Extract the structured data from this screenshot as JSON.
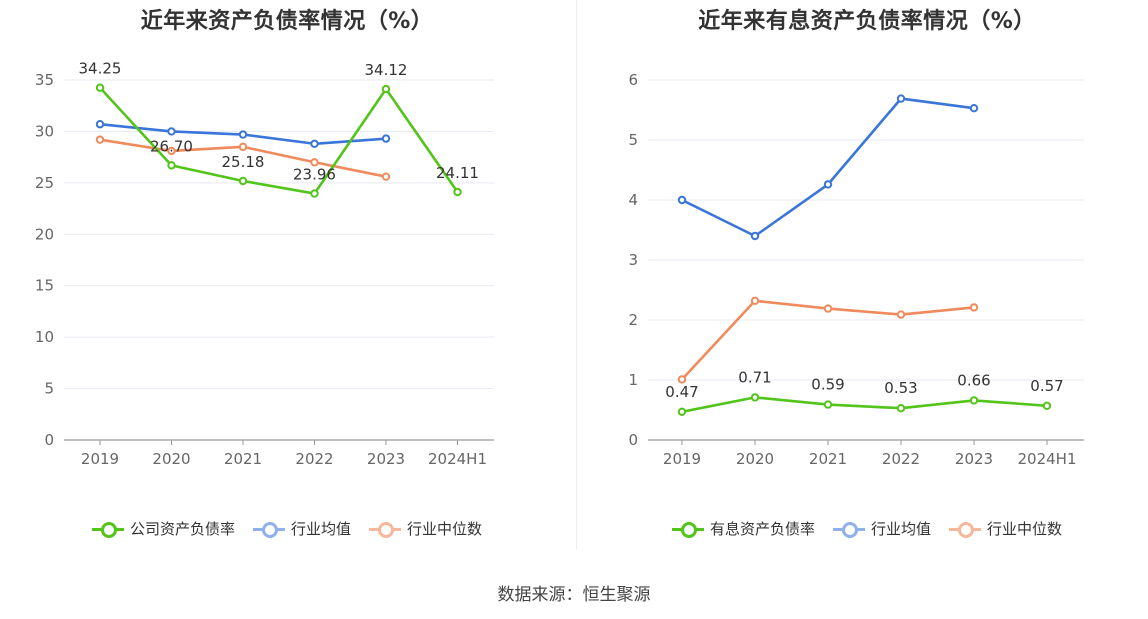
{
  "source": "数据来源：恒生聚源",
  "chart_data": [
    {
      "type": "line",
      "title": "近年来资产负债率情况（%）",
      "categories": [
        "2019",
        "2020",
        "2021",
        "2022",
        "2023",
        "2024H1"
      ],
      "ylim": [
        0,
        35
      ],
      "yticks": [
        0,
        5,
        10,
        15,
        20,
        25,
        30,
        35
      ],
      "grid": true,
      "legend_position": "bottom",
      "series": [
        {
          "name": "公司资产负债率",
          "color": "#52c41a",
          "values": [
            34.25,
            26.7,
            25.18,
            23.96,
            34.12,
            24.11
          ],
          "labels": [
            "34.25",
            "26.70",
            "25.18",
            "23.96",
            "34.12",
            "24.11"
          ]
        },
        {
          "name": "行业均值",
          "color": "#3a75d9",
          "values": [
            30.7,
            30.0,
            29.7,
            28.8,
            29.3,
            null
          ]
        },
        {
          "name": "行业中位数",
          "color": "#f08a5d",
          "values": [
            29.2,
            28.1,
            28.5,
            27.0,
            25.6,
            null
          ]
        }
      ]
    },
    {
      "type": "line",
      "title": "近年来有息资产负债率情况（%）",
      "categories": [
        "2019",
        "2020",
        "2021",
        "2022",
        "2023",
        "2024H1"
      ],
      "ylim": [
        0,
        6
      ],
      "yticks": [
        0,
        1,
        2,
        3,
        4,
        5,
        6
      ],
      "grid": true,
      "legend_position": "bottom",
      "series": [
        {
          "name": "有息资产负债率",
          "color": "#52c41a",
          "values": [
            0.47,
            0.71,
            0.59,
            0.53,
            0.66,
            0.57
          ],
          "labels": [
            "0.47",
            "0.71",
            "0.59",
            "0.53",
            "0.66",
            "0.57"
          ]
        },
        {
          "name": "行业均值",
          "color": "#3a75d9",
          "values": [
            4.0,
            3.4,
            4.26,
            5.69,
            5.53,
            null
          ]
        },
        {
          "name": "行业中位数",
          "color": "#f08a5d",
          "values": [
            1.01,
            2.32,
            2.19,
            2.09,
            2.21,
            null
          ]
        }
      ]
    }
  ]
}
